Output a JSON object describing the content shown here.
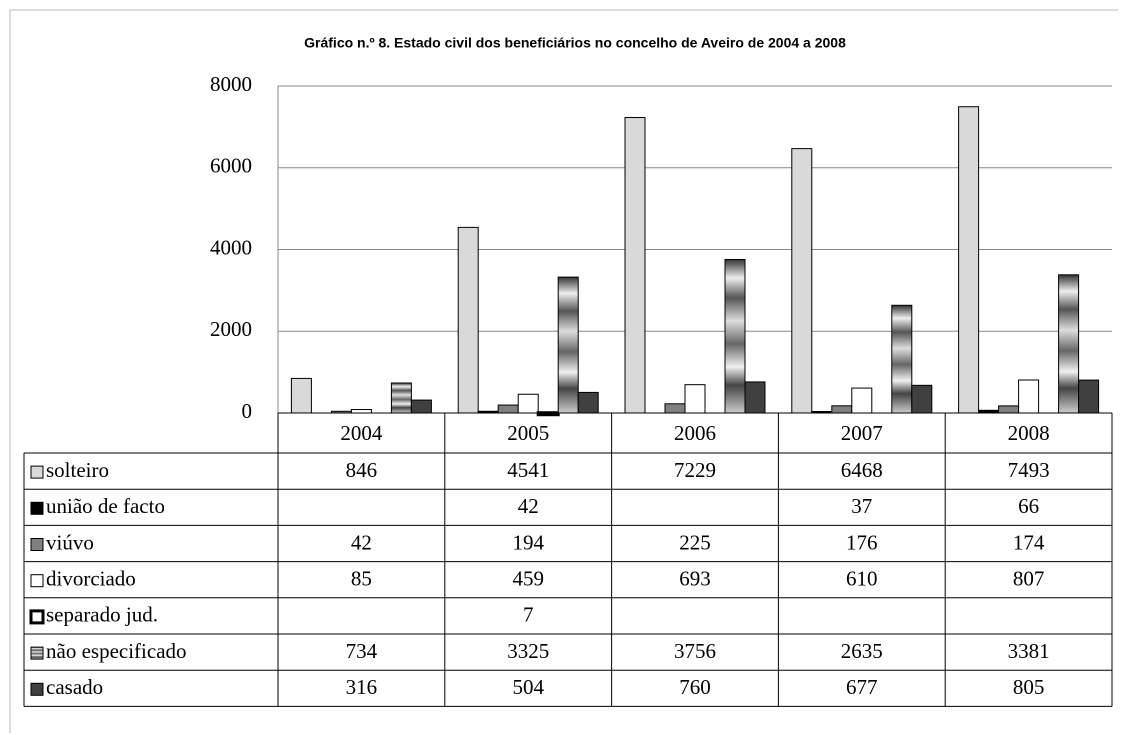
{
  "chart_data": {
    "type": "bar",
    "title": "Gráfico n.º 8. Estado civil dos beneficiários no concelho de Aveiro de 2004 a 2008",
    "categories": [
      "2004",
      "2005",
      "2006",
      "2007",
      "2008"
    ],
    "ylim": [
      0,
      8000
    ],
    "yticks": [
      0,
      2000,
      4000,
      6000,
      8000
    ],
    "grid": true,
    "data_table": true,
    "series": [
      {
        "name": "solteiro",
        "color": "#d9d9d9",
        "values": [
          846,
          4541,
          7229,
          6468,
          7493
        ]
      },
      {
        "name": "união de facto",
        "color": "#000000",
        "values": [
          null,
          42,
          null,
          37,
          66
        ]
      },
      {
        "name": "viúvo",
        "color": "#808080",
        "values": [
          42,
          194,
          225,
          176,
          174
        ]
      },
      {
        "name": "divorciado",
        "color": "#ffffff",
        "values": [
          85,
          459,
          693,
          610,
          807
        ]
      },
      {
        "name": "separado jud.",
        "color": "#ffffff",
        "border": "thick",
        "values": [
          null,
          7,
          null,
          null,
          null
        ]
      },
      {
        "name": "não especificado",
        "color": "#a6a6a6",
        "fill_style": "gradient",
        "values": [
          734,
          3325,
          3756,
          2635,
          3381
        ]
      },
      {
        "name": "casado",
        "color": "#404040",
        "values": [
          316,
          504,
          760,
          677,
          805
        ]
      }
    ]
  }
}
